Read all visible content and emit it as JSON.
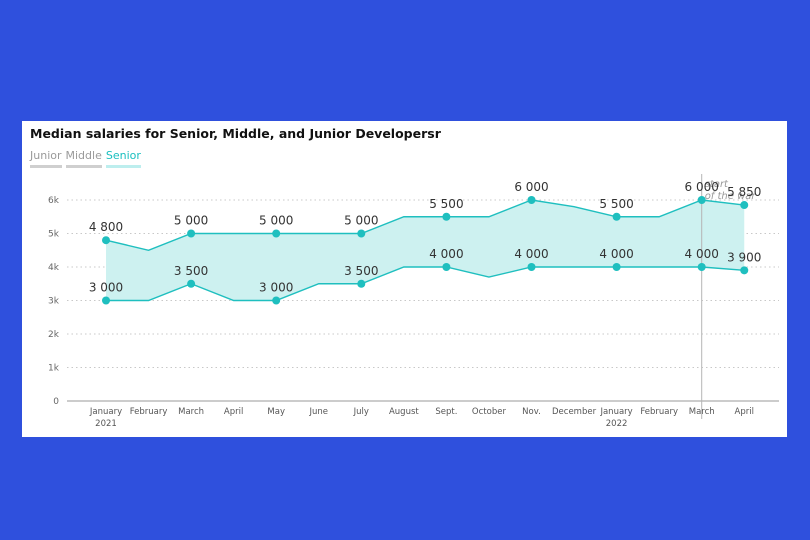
{
  "legend": {
    "items": [
      {
        "label": "Junior",
        "active": false
      },
      {
        "label": "Middle",
        "active": false
      },
      {
        "label": "Senior",
        "active": true
      }
    ]
  },
  "colors": {
    "background": "#2f50dd",
    "line": "#1fbfbf",
    "band": "#cdf1f0",
    "event_line": "#b5b5b5"
  },
  "chart_data": {
    "type": "area",
    "title": "Median salaries for Senior, Middle, and Junior Developersr",
    "legend": [
      "Junior",
      "Middle",
      "Senior"
    ],
    "legend_placement": "top-left",
    "xlabel": "",
    "ylabel": "",
    "ylim": [
      0,
      6000
    ],
    "yticks": [
      {
        "value": 0,
        "label": "0"
      },
      {
        "value": 1000,
        "label": "1k"
      },
      {
        "value": 2000,
        "label": "2k"
      },
      {
        "value": 3000,
        "label": "3k"
      },
      {
        "value": 4000,
        "label": "4k"
      },
      {
        "value": 5000,
        "label": "5k"
      },
      {
        "value": 6000,
        "label": "6k"
      }
    ],
    "grid": "horizontal dotted",
    "categories": [
      {
        "label": "January",
        "sub": "2021"
      },
      {
        "label": "February",
        "sub": ""
      },
      {
        "label": "March",
        "sub": ""
      },
      {
        "label": "April",
        "sub": ""
      },
      {
        "label": "May",
        "sub": ""
      },
      {
        "label": "June",
        "sub": ""
      },
      {
        "label": "July",
        "sub": ""
      },
      {
        "label": "August",
        "sub": ""
      },
      {
        "label": "Sept.",
        "sub": ""
      },
      {
        "label": "October",
        "sub": ""
      },
      {
        "label": "Nov.",
        "sub": ""
      },
      {
        "label": "December",
        "sub": ""
      },
      {
        "label": "January",
        "sub": "2022"
      },
      {
        "label": "February",
        "sub": ""
      },
      {
        "label": "March",
        "sub": ""
      },
      {
        "label": "April",
        "sub": ""
      }
    ],
    "series": [
      {
        "role": "upper",
        "values": [
          4800,
          4500,
          5000,
          5000,
          5000,
          5000,
          5000,
          5500,
          5500,
          5500,
          6000,
          5800,
          5500,
          5500,
          6000,
          5850
        ],
        "markers": [
          0,
          2,
          4,
          6,
          8,
          10,
          12,
          14,
          15
        ],
        "labels": [
          "4 800",
          null,
          "5 000",
          null,
          "5 000",
          null,
          "5 000",
          null,
          "5 500",
          null,
          "6 000",
          null,
          "5 500",
          null,
          "6 000",
          "5 850"
        ]
      },
      {
        "role": "lower",
        "values": [
          3000,
          3000,
          3500,
          3000,
          3000,
          3500,
          3500,
          4000,
          4000,
          3700,
          4000,
          4000,
          4000,
          4000,
          4000,
          3900
        ],
        "markers": [
          0,
          2,
          4,
          6,
          8,
          10,
          12,
          14,
          15
        ],
        "labels": [
          "3 000",
          null,
          "3 500",
          null,
          "3 000",
          null,
          "3 500",
          null,
          "4 000",
          null,
          "4 000",
          null,
          "4 000",
          null,
          "4 000",
          "3 900"
        ]
      }
    ],
    "annotations": [
      {
        "category_index": 14,
        "text_lines": [
          "start",
          "of the war"
        ]
      }
    ]
  }
}
